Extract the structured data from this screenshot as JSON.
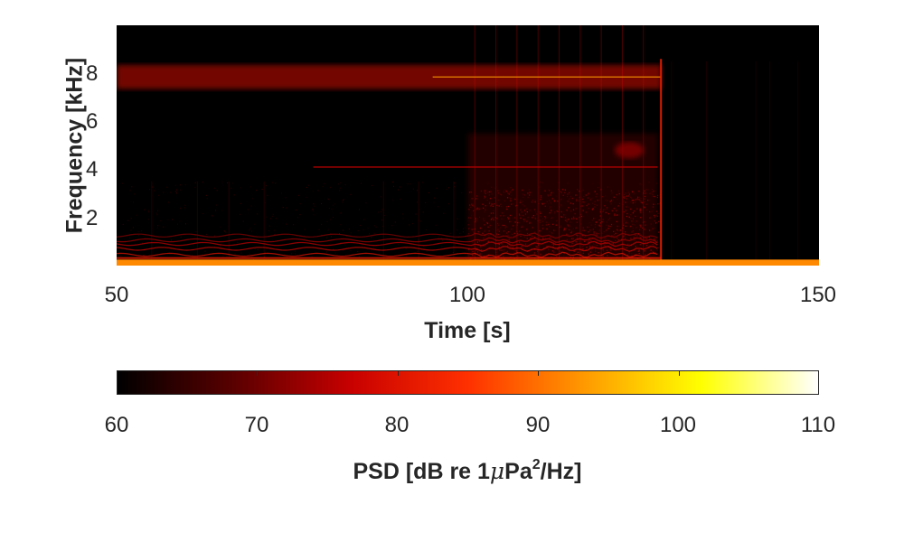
{
  "chart_data": {
    "type": "heatmap",
    "subtype": "spectrogram",
    "xlabel": "Time [s]",
    "ylabel": "Frequency [kHz]",
    "xlim": [
      50,
      150
    ],
    "ylim": [
      0,
      10
    ],
    "x_ticks": [
      "50",
      "100",
      "150"
    ],
    "y_ticks": [
      "2",
      "4",
      "6",
      "8"
    ],
    "y_tick_values": [
      2,
      4,
      6,
      8
    ],
    "x_tick_values": [
      50,
      100,
      150
    ],
    "colorbar": {
      "label_prefix": "PSD [dB re 1",
      "label_mu": "μ",
      "label_unit": "Pa",
      "label_exp": "2",
      "label_suffix": "/Hz]",
      "range": [
        60,
        110
      ],
      "ticks": [
        "60",
        "70",
        "80",
        "90",
        "100",
        "110"
      ],
      "tick_values": [
        60,
        70,
        80,
        90,
        100,
        110
      ],
      "colormap": "hot",
      "colors": [
        "#000000",
        "#5a0000",
        "#c80000",
        "#ff3000",
        "#ff9a00",
        "#ffff00",
        "#ffffff"
      ]
    },
    "features": [
      {
        "name": "tonal-band-8kHz",
        "t_start": 50,
        "t_end": 127,
        "f_khz": 7.85,
        "db": 88
      },
      {
        "name": "tonal-line-4kHz",
        "t_start": 78,
        "t_end": 127,
        "f_khz": 4.1,
        "db": 76
      },
      {
        "name": "low-frequency-floor",
        "t_start": 50,
        "t_end": 150,
        "f_khz": 0.1,
        "db": 92
      },
      {
        "name": "low-frequency-noise",
        "t_start": 50,
        "t_end": 127,
        "f_khz": 0.9,
        "db": 80
      },
      {
        "name": "broadband-energy",
        "t_start": 100,
        "t_end": 127,
        "f_khz": 2.0,
        "db": 72
      }
    ],
    "cutoff_time": 127.5
  }
}
